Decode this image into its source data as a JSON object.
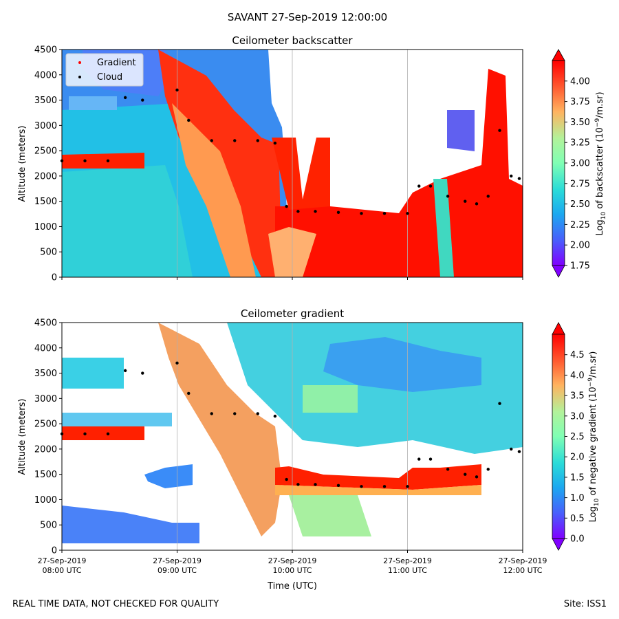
{
  "suptitle": "SAVANT 27-Sep-2019 12:00:00",
  "footer_left": "REAL TIME DATA, NOT CHECKED FOR QUALITY",
  "footer_right": "Site: ISS1",
  "chart_data": [
    {
      "type": "heatmap",
      "title": "Ceilometer backscatter",
      "ylabel": "Altitude (meters)",
      "ylim": [
        0,
        4500
      ],
      "yticks": [
        0,
        500,
        1000,
        1500,
        2000,
        2500,
        3000,
        3500,
        4000,
        4500
      ],
      "x_range": [
        "27-Sep-2019 08:00 UTC",
        "27-Sep-2019 12:00 UTC"
      ],
      "grid": "vertical lines at hourly ticks",
      "legend": {
        "placement": "upper-left",
        "entries": [
          {
            "label": "Gradient",
            "color": "#ff0000",
            "marker": "dot"
          },
          {
            "label": "Cloud",
            "color": "#000000",
            "marker": "dot"
          }
        ]
      },
      "colorbar": {
        "label_main": "Log",
        "label_sub": "10",
        "label_rest": " of backscatter (10",
        "label_sup": "−9",
        "label_end": "/m.sr)",
        "vmin": 1.75,
        "vmax": 4.25,
        "ticks": [
          "1.75",
          "2.00",
          "2.25",
          "2.50",
          "2.75",
          "3.00",
          "3.25",
          "3.50",
          "3.75",
          "4.00"
        ],
        "tick_values": [
          1.75,
          2.0,
          2.25,
          2.5,
          2.75,
          3.0,
          3.25,
          3.5,
          3.75,
          4.0
        ],
        "colormap": "rainbow",
        "extend": "both"
      },
      "cloud_base_series": {
        "name": "Cloud",
        "x_hours": [
          0.0,
          0.2,
          0.4,
          0.55,
          0.7,
          1.0,
          1.1,
          1.3,
          1.5,
          1.7,
          1.85,
          1.95,
          2.05,
          2.2,
          2.4,
          2.6,
          2.8,
          3.0,
          3.1,
          3.2,
          3.35,
          3.5,
          3.6,
          3.7,
          3.8,
          3.9,
          3.97
        ],
        "altitude_m": [
          2300,
          2300,
          2300,
          3550,
          3500,
          3700,
          3100,
          2700,
          2700,
          2700,
          2650,
          1400,
          1300,
          1300,
          1280,
          1260,
          1260,
          1260,
          1800,
          1800,
          1600,
          1500,
          1450,
          1600,
          2900,
          2000,
          1950
        ]
      }
    },
    {
      "type": "heatmap",
      "title": "Ceilometer gradient",
      "ylabel": "Altitude (meters)",
      "xlabel": "Time (UTC)",
      "ylim": [
        0,
        4500
      ],
      "yticks": [
        0,
        500,
        1000,
        1500,
        2000,
        2500,
        3000,
        3500,
        4000,
        4500
      ],
      "xticks": [
        {
          "line1": "27-Sep-2019",
          "line2": "08:00 UTC"
        },
        {
          "line1": "27-Sep-2019",
          "line2": "09:00 UTC"
        },
        {
          "line1": "27-Sep-2019",
          "line2": "10:00 UTC"
        },
        {
          "line1": "27-Sep-2019",
          "line2": "11:00 UTC"
        },
        {
          "line1": "27-Sep-2019",
          "line2": "12:00 UTC"
        }
      ],
      "colorbar": {
        "label_main": "Log",
        "label_sub": "10",
        "label_rest": " of negative gradient (10",
        "label_sup": "−9",
        "label_end": "/m.sr)",
        "vmin": 0.0,
        "vmax": 5.0,
        "ticks": [
          "0.0",
          "0.5",
          "1.0",
          "1.5",
          "2.0",
          "2.5",
          "3.0",
          "3.5",
          "4.0",
          "4.5"
        ],
        "tick_values": [
          0.0,
          0.5,
          1.0,
          1.5,
          2.0,
          2.5,
          3.0,
          3.5,
          4.0,
          4.5
        ],
        "colormap": "rainbow",
        "extend": "both"
      }
    }
  ]
}
